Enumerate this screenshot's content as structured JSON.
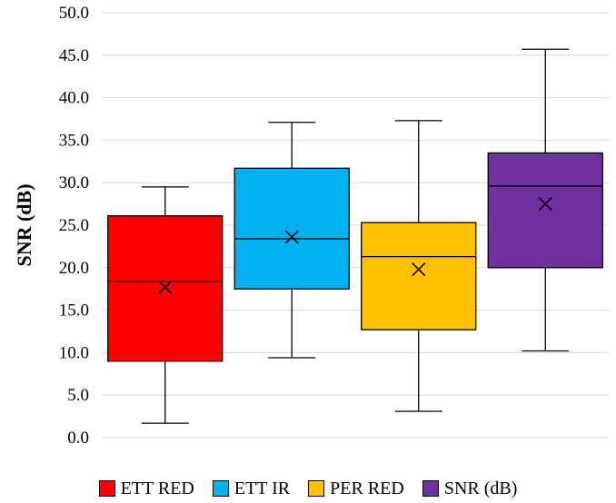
{
  "chart_data": {
    "type": "box",
    "title": "",
    "xlabel": "",
    "ylabel": "SNR (dB)",
    "ylim": [
      0,
      50
    ],
    "ytick_step": 5,
    "yticks": [
      "0.0",
      "5.0",
      "10.0",
      "15.0",
      "20.0",
      "25.0",
      "30.0",
      "35.0",
      "40.0",
      "45.0",
      "50.0"
    ],
    "grid": "horizontal",
    "legend_position": "bottom",
    "series": [
      {
        "name": "ETT RED",
        "color": "#ff0000",
        "min": 1.7,
        "q1": 9.0,
        "median": 18.4,
        "q3": 26.1,
        "max": 29.5,
        "mean": 17.7
      },
      {
        "name": "ETT IR",
        "color": "#00b0f0",
        "min": 9.4,
        "q1": 17.5,
        "median": 23.4,
        "q3": 31.7,
        "max": 37.1,
        "mean": 23.6
      },
      {
        "name": "PER RED",
        "color": "#ffc000",
        "min": 3.1,
        "q1": 12.7,
        "median": 21.3,
        "q3": 25.3,
        "max": 37.3,
        "mean": 19.8
      },
      {
        "name": "SNR (dB)",
        "color": "#7030a0",
        "min": 10.2,
        "q1": 20.0,
        "median": 29.6,
        "q3": 33.5,
        "max": 45.7,
        "mean": 27.5
      }
    ]
  }
}
